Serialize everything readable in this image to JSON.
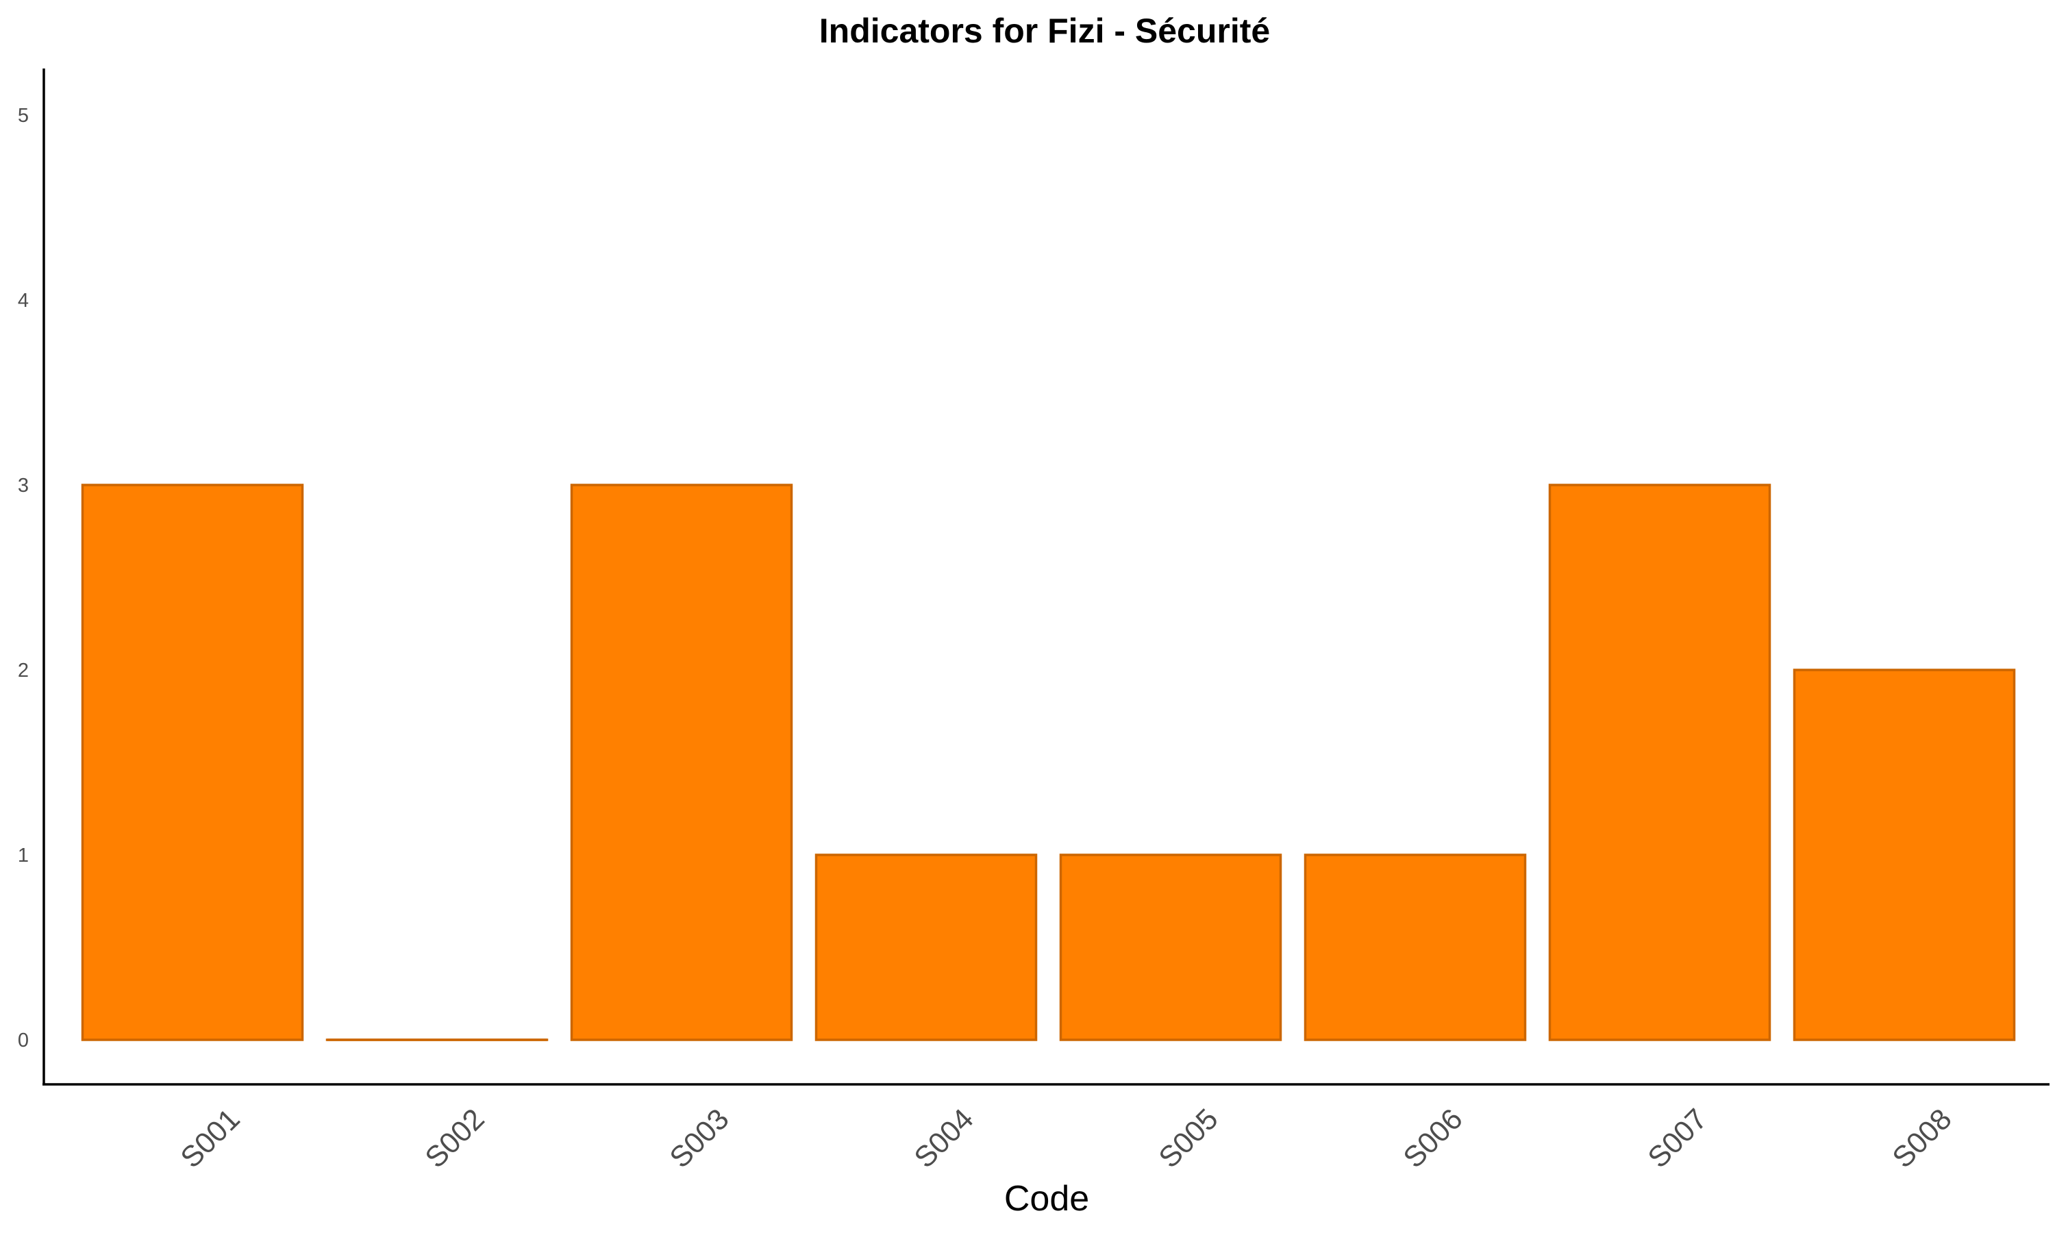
{
  "chart_data": {
    "type": "bar",
    "title": "Indicators for Fizi - Sécurité",
    "xlabel": "Code",
    "ylabel": "",
    "categories": [
      "S001",
      "S002",
      "S003",
      "S004",
      "S005",
      "S006",
      "S007",
      "S008"
    ],
    "values": [
      3,
      0,
      3,
      1,
      1,
      1,
      3,
      2
    ],
    "ylim": [
      0,
      5.25
    ],
    "y_ticks": [
      0,
      1,
      2,
      3,
      4,
      5
    ],
    "grid": false,
    "legend": "none",
    "bar_fill": "#FF8000",
    "bar_stroke": "#CC6600"
  }
}
